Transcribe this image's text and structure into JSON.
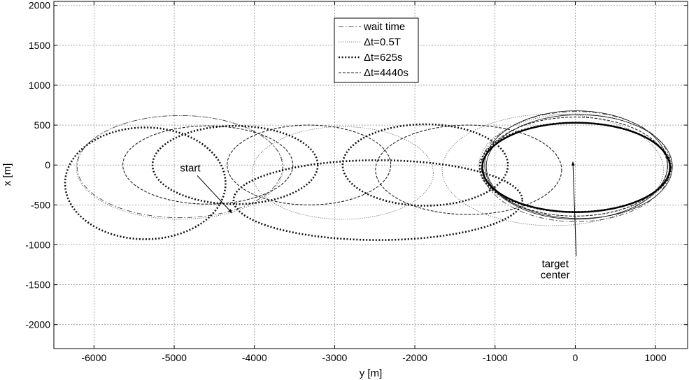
{
  "chart_data": {
    "type": "line",
    "title": "",
    "xlabel": "y [m]",
    "ylabel": "x [m]",
    "xlim": [
      -6500,
      1400
    ],
    "ylim": [
      -2300,
      2050
    ],
    "xticks": [
      -6000,
      -5000,
      -4000,
      -3000,
      -2000,
      -1000,
      0,
      1000
    ],
    "yticks": [
      -2000,
      -1500,
      -1000,
      -500,
      0,
      500,
      1000,
      1500,
      2000
    ],
    "grid": true,
    "legend_position": "top-center",
    "legend": [
      "wait time",
      "Δt=0.5T",
      "Δt=625s",
      "Δt=4440s"
    ],
    "series": [
      {
        "name": "wait time",
        "style": "dash-dot",
        "ellipses": [
          {
            "cx": -4930,
            "cy": -20,
            "rx": 1280,
            "ry": 640
          },
          {
            "cx": 10,
            "cy": -20,
            "rx": 1180,
            "ry": 690
          }
        ]
      },
      {
        "name": "Δt=0.5T",
        "style": "dotted",
        "ellipses": [
          {
            "cx": -4930,
            "cy": -30,
            "rx": 1290,
            "ry": 650
          },
          {
            "cx": -2900,
            "cy": -100,
            "rx": 1130,
            "ry": 580
          },
          {
            "cx": 0,
            "cy": 0,
            "rx": 1200,
            "ry": 640
          },
          {
            "cx": -280,
            "cy": -60,
            "rx": 1380,
            "ry": 700
          }
        ]
      },
      {
        "name": "Δt=625s",
        "style": "heavy-dotted",
        "ellipses": [
          {
            "cx": -5360,
            "cy": -230,
            "rx": 1000,
            "ry": 700
          },
          {
            "cx": -4240,
            "cy": 0,
            "rx": 1030,
            "ry": 490
          },
          {
            "cx": -2460,
            "cy": -440,
            "rx": 1800,
            "ry": 500
          },
          {
            "cx": -1870,
            "cy": 0,
            "rx": 1030,
            "ry": 510
          },
          {
            "cx": 0,
            "cy": -30,
            "rx": 1190,
            "ry": 560
          }
        ]
      },
      {
        "name": "Δt=4440s",
        "style": "dashed",
        "ellipses": [
          {
            "cx": -4580,
            "cy": 0,
            "rx": 1060,
            "ry": 490
          },
          {
            "cx": -3320,
            "cy": 0,
            "rx": 1020,
            "ry": 500
          },
          {
            "cx": -1330,
            "cy": -60,
            "rx": 1160,
            "ry": 560
          },
          {
            "cx": 0,
            "cy": -20,
            "rx": 1150,
            "ry": 620
          }
        ]
      },
      {
        "name": "",
        "style": "solid",
        "ellipses": [
          {
            "cx": 10,
            "cy": 0,
            "rx": 1140,
            "ry": 680
          },
          {
            "cx": 50,
            "cy": -20,
            "rx": 1160,
            "ry": 650
          }
        ]
      },
      {
        "name": "",
        "style": "solid-thick",
        "ellipses": [
          {
            "cx": 10,
            "cy": -30,
            "rx": 1170,
            "ry": 560
          }
        ]
      }
    ],
    "annotations": [
      {
        "text": "start",
        "at": [
          -4800,
          -80
        ],
        "arrow_to": [
          -4280,
          -600
        ]
      },
      {
        "text": "target",
        "at": [
          -250,
          -1280
        ],
        "arrow_to": [
          -30,
          40
        ]
      },
      {
        "text": "center",
        "at": [
          -250,
          -1420
        ],
        "arrow_to": null
      }
    ]
  }
}
